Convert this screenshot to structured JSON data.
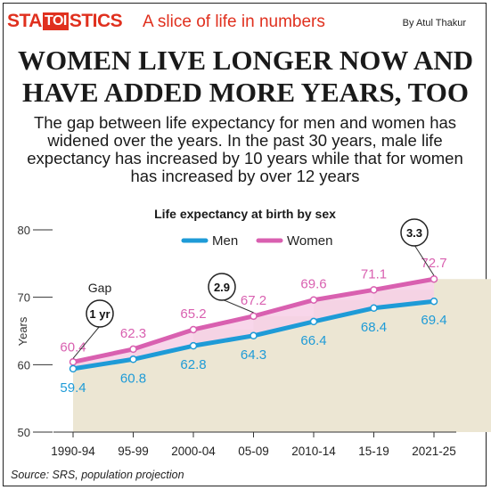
{
  "header": {
    "brand_pre": "STA",
    "brand_mid": "TOI",
    "brand_post": "STICS",
    "tagline": "A slice of life in numbers",
    "byline": "By Atul Thakur"
  },
  "headline": "WOMEN LIVE LONGER NOW AND HAVE ADDED MORE YEARS, TOO",
  "subhead": "The gap between life expectancy for men and women has widened over the years. In the past 30 years, male life expectancy has increased by 10 years while that for women has increased by over 12 years",
  "source": "Source: SRS, population projection",
  "colors": {
    "accent": "#e0301e",
    "men": "#1e9bd7",
    "women": "#d960b0",
    "women_fill": "#f7cfe6",
    "column_fill": "#ece6d3"
  },
  "chart_data": {
    "type": "line",
    "title": "Life expectancy at birth by sex",
    "ylabel": "Years",
    "ylim": [
      50,
      80
    ],
    "yticks": [
      50,
      60,
      70,
      80
    ],
    "categories": [
      "1990-94",
      "95-99",
      "2000-04",
      "05-09",
      "2010-14",
      "15-19",
      "2021-25"
    ],
    "series": [
      {
        "name": "Men",
        "values": [
          59.4,
          60.8,
          62.8,
          64.3,
          66.4,
          68.4,
          69.4
        ]
      },
      {
        "name": "Women",
        "values": [
          60.4,
          62.3,
          65.2,
          67.2,
          69.6,
          71.1,
          72.7
        ]
      }
    ],
    "legend_position": "top",
    "annotations": [
      {
        "category": "1990-94",
        "label": "Gap",
        "value": "1 yr"
      },
      {
        "category": "05-09",
        "value": "2.9"
      },
      {
        "category": "2021-25",
        "value": "3.3"
      }
    ]
  }
}
